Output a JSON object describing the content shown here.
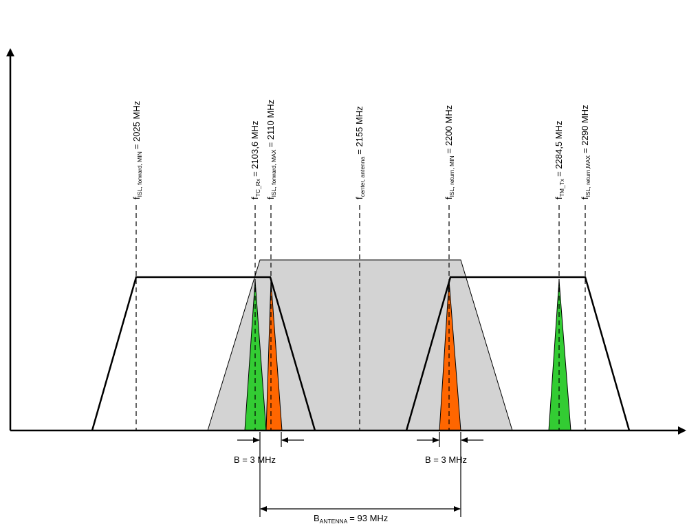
{
  "frequency_markers": [
    {
      "name": "f",
      "subscript": "ISL, forward, MIN",
      "value": "= 2025 MHz",
      "freq_mhz": 2025
    },
    {
      "name": "f",
      "subscript": "TC_Rx",
      "value": "= 2103,6 MHz",
      "freq_mhz": 2103.6
    },
    {
      "name": "f",
      "subscript": "ISL, forward, MAX",
      "value": "= 2110 MHz",
      "freq_mhz": 2110
    },
    {
      "name": "f",
      "subscript": "center, antenna",
      "value": "= 2155 MHz",
      "freq_mhz": 2155
    },
    {
      "name": "f",
      "subscript": "ISL, return, MIN",
      "value": "= 2200 MHz",
      "freq_mhz": 2200
    },
    {
      "name": "f",
      "subscript": "TM_Tx",
      "value": "= 2284,5 MHz",
      "freq_mhz": 2284.5
    },
    {
      "name": "f",
      "subscript": "ISL, return,MAX",
      "value": "= 2290 MHz",
      "freq_mhz": 2290
    }
  ],
  "bandwidths": {
    "left": "B = 3 MHz",
    "right": "B = 3 MHz",
    "antenna": {
      "name": "B",
      "subscript": "ANTENNA",
      "value": "= 93 MHz"
    }
  },
  "colors": {
    "antenna_band": "#d3d3d3",
    "rx_spike": "#33cc33",
    "tx_spike": "#ff6600",
    "lines": "#000000"
  }
}
